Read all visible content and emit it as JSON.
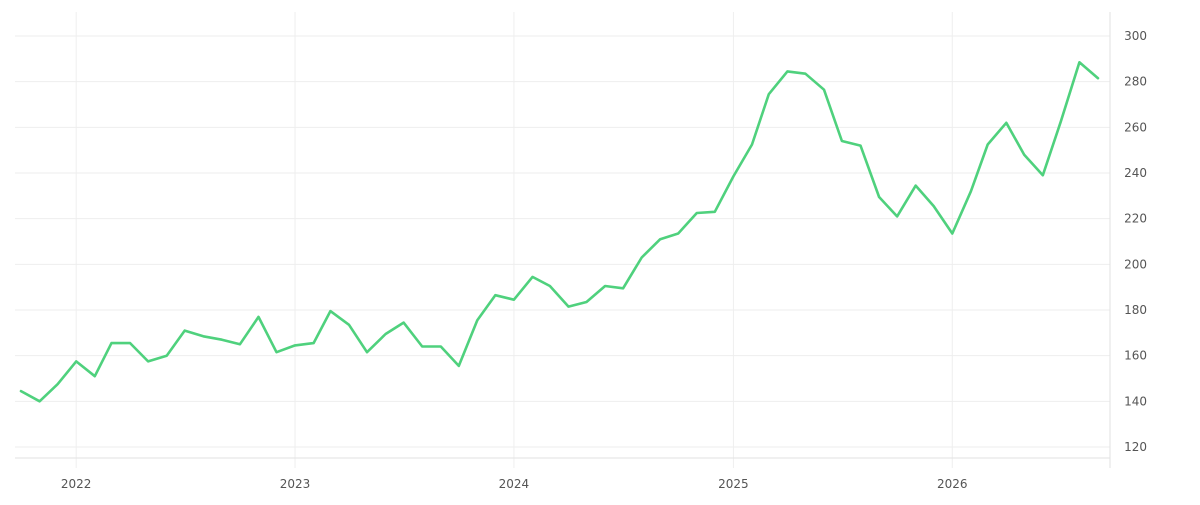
{
  "colors": {
    "series": "#4fd17d",
    "grid": "#eeeeee",
    "axis_text": "#555555"
  },
  "chart_data": {
    "type": "line",
    "title": "",
    "xlabel": "",
    "ylabel": "",
    "y_axis_position": "right",
    "grid": true,
    "legend": "none",
    "xlim": [
      "2021-10-01",
      "2026-09-01"
    ],
    "ylim": [
      115,
      305
    ],
    "x_ticks": [
      {
        "date": "2022-01-01",
        "label": "2022"
      },
      {
        "date": "2023-01-01",
        "label": "2023"
      },
      {
        "date": "2024-01-01",
        "label": "2024"
      },
      {
        "date": "2025-01-01",
        "label": "2025"
      },
      {
        "date": "2026-01-01",
        "label": "2026"
      }
    ],
    "y_ticks": [
      120,
      140,
      160,
      180,
      200,
      220,
      240,
      260,
      280,
      300
    ],
    "series": [
      {
        "x": [
          "2021-10-01",
          "2021-11-01",
          "2021-12-01",
          "2022-01-01",
          "2022-02-01",
          "2022-03-01",
          "2022-04-01",
          "2022-05-01",
          "2022-06-01",
          "2022-07-01",
          "2022-08-01",
          "2022-09-01",
          "2022-10-01",
          "2022-11-01",
          "2022-12-01",
          "2023-01-01",
          "2023-02-01",
          "2023-03-01",
          "2023-04-01",
          "2023-05-01",
          "2023-06-01",
          "2023-07-01",
          "2023-08-01",
          "2023-09-01",
          "2023-10-01",
          "2023-11-01",
          "2023-12-01",
          "2024-01-01",
          "2024-02-01",
          "2024-03-01",
          "2024-04-01",
          "2024-05-01",
          "2024-06-01",
          "2024-07-01",
          "2024-08-01",
          "2024-09-01",
          "2024-10-01",
          "2024-11-01",
          "2024-12-01",
          "2025-01-01",
          "2025-02-01",
          "2025-03-01",
          "2025-04-01",
          "2025-05-01",
          "2025-06-01",
          "2025-07-01",
          "2025-08-01",
          "2025-09-01",
          "2025-10-01",
          "2025-11-01",
          "2025-12-01",
          "2026-01-01",
          "2026-02-01",
          "2026-03-01",
          "2026-04-01",
          "2026-05-01",
          "2026-06-01",
          "2026-07-01",
          "2026-08-01",
          "2026-09-01"
        ],
        "y": [
          144.5,
          140,
          147.5,
          157.5,
          151,
          165.5,
          165.5,
          157.5,
          160,
          171,
          168.5,
          167,
          165,
          177,
          161.5,
          164.5,
          165.5,
          179.5,
          173.5,
          161.5,
          169.5,
          174.5,
          164,
          164,
          155.5,
          175.5,
          186.5,
          184.5,
          194.5,
          190.5,
          181.5,
          183.5,
          190.5,
          189.5,
          203,
          211,
          213.5,
          222.5,
          223,
          238.5,
          252.5,
          274.5,
          284.5,
          283.5,
          276.5,
          254,
          252,
          229.5,
          221,
          234.5,
          225.5,
          213.5,
          232,
          252.5,
          262,
          248,
          239,
          262.5,
          288.5,
          281.5
        ]
      }
    ]
  }
}
